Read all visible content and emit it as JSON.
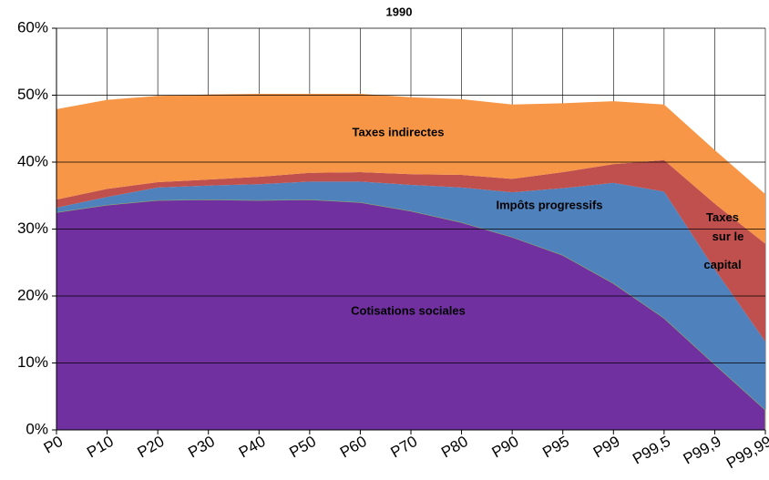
{
  "chart_data": {
    "type": "stacked_area",
    "title": "1990",
    "categories": [
      "P0",
      "P10",
      "P20",
      "P30",
      "P40",
      "P50",
      "P60",
      "P70",
      "P80",
      "P90",
      "P95",
      "P99",
      "P99,5",
      "P99,9",
      "P99,99"
    ],
    "series": [
      {
        "name": "Cotisations sociales",
        "color": "#7030a0",
        "values": [
          32.5,
          33.6,
          34.3,
          34.4,
          34.3,
          34.4,
          34.0,
          32.7,
          31.0,
          28.8,
          26.1,
          21.9,
          16.7,
          9.8,
          3.0
        ]
      },
      {
        "name": "Impôts progressifs",
        "color": "#4f81bd",
        "values": [
          0.7,
          1.2,
          1.9,
          2.1,
          2.4,
          2.7,
          3.1,
          3.9,
          5.2,
          6.7,
          10.0,
          15.0,
          18.9,
          14.2,
          10.2
        ]
      },
      {
        "name": "Taxes sur le capital",
        "color": "#c0504d",
        "values": [
          1.2,
          1.2,
          0.8,
          0.9,
          1.1,
          1.3,
          1.4,
          1.6,
          1.9,
          2.0,
          2.4,
          2.8,
          4.7,
          9.8,
          14.6
        ]
      },
      {
        "name": "Taxes indirectes",
        "color": "#f79646",
        "values": [
          13.5,
          13.3,
          12.9,
          12.7,
          12.4,
          11.8,
          11.7,
          11.5,
          11.3,
          11.1,
          10.3,
          9.4,
          8.3,
          8.0,
          7.4
        ]
      }
    ],
    "ylim": [
      0,
      60
    ],
    "yticks": [
      {
        "value": 0,
        "label": "0%"
      },
      {
        "value": 10,
        "label": "10%"
      },
      {
        "value": 20,
        "label": "20%"
      },
      {
        "value": 30,
        "label": "30%"
      },
      {
        "value": 40,
        "label": "40%"
      },
      {
        "value": 50,
        "label": "50%"
      },
      {
        "value": 60,
        "label": "60%"
      }
    ],
    "grid": true
  }
}
